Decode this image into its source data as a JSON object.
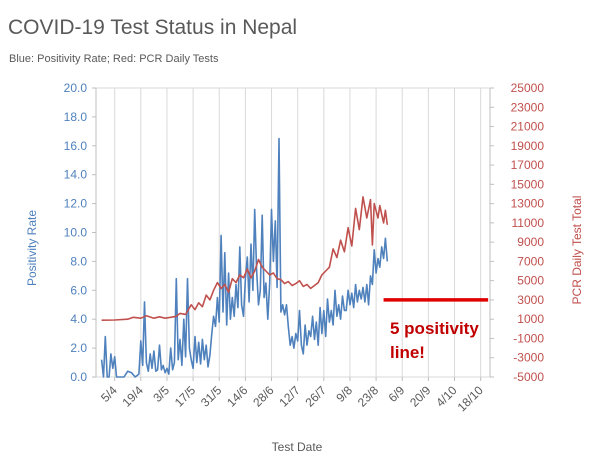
{
  "chart_data": {
    "type": "line",
    "title": "COVID-19 Test Status in Nepal",
    "subtitle": "Blue: Positivity Rate; Red: PCR Daily Tests",
    "xlabel": "Test Date",
    "ylabel_left": "Positivity Rate",
    "ylabel_right": "PCR Daily Test Total",
    "x_ticks": [
      "5/4",
      "19/4",
      "3/5",
      "17/5",
      "31/5",
      "14/6",
      "28/6",
      "12/7",
      "26/7",
      "9/8",
      "23/8",
      "6/9",
      "20/9",
      "4/10",
      "18/10"
    ],
    "y_left_ticks": [
      "0.0",
      "2.0",
      "4.0",
      "6.0",
      "8.0",
      "10.0",
      "12.0",
      "14.0",
      "16.0",
      "18.0",
      "20.0"
    ],
    "y_right_ticks": [
      "-5000",
      "-3000",
      "-1000",
      "1000",
      "3000",
      "5000",
      "7000",
      "9000",
      "11000",
      "13000",
      "15000",
      "17000",
      "19000",
      "21000",
      "23000",
      "25000"
    ],
    "ylim_left": [
      0,
      20
    ],
    "ylim_right": [
      -5000,
      25000
    ],
    "grid": "vertical",
    "colors": {
      "positivity": "#4f81bd",
      "tests": "#c0504d",
      "annotation_text": "#c00000",
      "annotation_line": "#e00000",
      "axis_text": "#7f7f7f"
    },
    "series": [
      {
        "name": "Positivity Rate",
        "axis": "left",
        "points": [
          [
            "2020-03-29",
            1.2
          ],
          [
            "2020-03-30",
            0.0
          ],
          [
            "2020-03-31",
            2.8
          ],
          [
            "2020-04-01",
            0.0
          ],
          [
            "2020-04-02",
            0.0
          ],
          [
            "2020-04-03",
            1.6
          ],
          [
            "2020-04-04",
            0.6
          ],
          [
            "2020-04-05",
            1.4
          ],
          [
            "2020-04-06",
            0.0
          ],
          [
            "2020-04-07",
            0.0
          ],
          [
            "2020-04-10",
            0.0
          ],
          [
            "2020-04-12",
            0.4
          ],
          [
            "2020-04-14",
            0.3
          ],
          [
            "2020-04-16",
            0.0
          ],
          [
            "2020-04-18",
            0.2
          ],
          [
            "2020-04-19",
            2.5
          ],
          [
            "2020-04-20",
            0.8
          ],
          [
            "2020-04-21",
            5.2
          ],
          [
            "2020-04-22",
            1.0
          ],
          [
            "2020-04-23",
            0.4
          ],
          [
            "2020-04-24",
            1.6
          ],
          [
            "2020-04-25",
            0.6
          ],
          [
            "2020-04-26",
            1.8
          ],
          [
            "2020-04-27",
            0.4
          ],
          [
            "2020-04-28",
            0.5
          ],
          [
            "2020-04-29",
            2.2
          ],
          [
            "2020-04-30",
            0.5
          ],
          [
            "2020-05-01",
            0.8
          ],
          [
            "2020-05-02",
            0.3
          ],
          [
            "2020-05-03",
            0.6
          ],
          [
            "2020-05-04",
            0.2
          ],
          [
            "2020-05-05",
            2.0
          ],
          [
            "2020-05-06",
            0.5
          ],
          [
            "2020-05-07",
            1.0
          ],
          [
            "2020-05-08",
            6.8
          ],
          [
            "2020-05-09",
            1.2
          ],
          [
            "2020-05-10",
            2.6
          ],
          [
            "2020-05-11",
            0.8
          ],
          [
            "2020-05-12",
            4.0
          ],
          [
            "2020-05-13",
            1.4
          ],
          [
            "2020-05-14",
            6.8
          ],
          [
            "2020-05-15",
            2.0
          ],
          [
            "2020-05-16",
            1.2
          ],
          [
            "2020-05-17",
            0.6
          ],
          [
            "2020-05-18",
            2.8
          ],
          [
            "2020-05-19",
            1.0
          ],
          [
            "2020-05-20",
            2.4
          ],
          [
            "2020-05-21",
            0.9
          ],
          [
            "2020-05-22",
            2.6
          ],
          [
            "2020-05-23",
            1.2
          ],
          [
            "2020-05-24",
            2.2
          ],
          [
            "2020-05-25",
            0.7
          ],
          [
            "2020-05-26",
            1.5
          ],
          [
            "2020-05-27",
            3.0
          ],
          [
            "2020-05-28",
            4.2
          ],
          [
            "2020-05-29",
            3.5
          ],
          [
            "2020-05-30",
            5.5
          ],
          [
            "2020-05-31",
            3.8
          ],
          [
            "2020-06-01",
            9.8
          ],
          [
            "2020-06-02",
            4.5
          ],
          [
            "2020-06-03",
            8.6
          ],
          [
            "2020-06-04",
            3.6
          ],
          [
            "2020-06-05",
            7.2
          ],
          [
            "2020-06-06",
            4.0
          ],
          [
            "2020-06-07",
            5.5
          ],
          [
            "2020-06-08",
            4.2
          ],
          [
            "2020-06-09",
            6.4
          ],
          [
            "2020-06-10",
            4.8
          ],
          [
            "2020-06-11",
            9.0
          ],
          [
            "2020-06-12",
            5.0
          ],
          [
            "2020-06-13",
            4.2
          ],
          [
            "2020-06-14",
            6.8
          ],
          [
            "2020-06-15",
            8.3
          ],
          [
            "2020-06-16",
            5.2
          ],
          [
            "2020-06-17",
            9.2
          ],
          [
            "2020-06-18",
            6.0
          ],
          [
            "2020-06-19",
            11.6
          ],
          [
            "2020-06-20",
            7.4
          ],
          [
            "2020-06-21",
            5.0
          ],
          [
            "2020-06-22",
            6.0
          ],
          [
            "2020-06-23",
            11.2
          ],
          [
            "2020-06-24",
            5.5
          ],
          [
            "2020-06-25",
            6.5
          ],
          [
            "2020-06-26",
            4.0
          ],
          [
            "2020-06-27",
            6.5
          ],
          [
            "2020-06-28",
            11.6
          ],
          [
            "2020-06-29",
            8.0
          ],
          [
            "2020-06-30",
            10.8
          ],
          [
            "2020-07-01",
            6.2
          ],
          [
            "2020-07-02",
            16.5
          ],
          [
            "2020-07-03",
            4.5
          ],
          [
            "2020-07-04",
            5.0
          ],
          [
            "2020-07-05",
            4.3
          ],
          [
            "2020-07-06",
            5.0
          ],
          [
            "2020-07-07",
            3.5
          ],
          [
            "2020-07-08",
            2.2
          ],
          [
            "2020-07-09",
            2.8
          ],
          [
            "2020-07-10",
            2.0
          ],
          [
            "2020-07-11",
            3.0
          ],
          [
            "2020-07-12",
            2.5
          ],
          [
            "2020-07-13",
            4.6
          ],
          [
            "2020-07-14",
            2.2
          ],
          [
            "2020-07-15",
            1.6
          ],
          [
            "2020-07-16",
            3.6
          ],
          [
            "2020-07-17",
            2.2
          ],
          [
            "2020-07-18",
            3.2
          ],
          [
            "2020-07-19",
            2.8
          ],
          [
            "2020-07-20",
            4.2
          ],
          [
            "2020-07-21",
            2.6
          ],
          [
            "2020-07-22",
            3.8
          ],
          [
            "2020-07-23",
            2.2
          ],
          [
            "2020-07-24",
            4.8
          ],
          [
            "2020-07-25",
            3.0
          ],
          [
            "2020-07-26",
            4.6
          ],
          [
            "2020-07-27",
            2.8
          ],
          [
            "2020-07-28",
            5.4
          ],
          [
            "2020-07-29",
            3.8
          ],
          [
            "2020-07-30",
            4.6
          ],
          [
            "2020-07-31",
            3.6
          ],
          [
            "2020-08-01",
            6.0
          ],
          [
            "2020-08-02",
            4.2
          ],
          [
            "2020-08-03",
            5.0
          ],
          [
            "2020-08-04",
            4.0
          ],
          [
            "2020-08-05",
            5.6
          ],
          [
            "2020-08-06",
            4.6
          ],
          [
            "2020-08-07",
            4.6
          ],
          [
            "2020-08-08",
            6.0
          ],
          [
            "2020-08-09",
            5.0
          ],
          [
            "2020-08-10",
            5.8
          ],
          [
            "2020-08-11",
            4.8
          ],
          [
            "2020-08-12",
            6.4
          ],
          [
            "2020-08-13",
            5.2
          ],
          [
            "2020-08-14",
            6.0
          ],
          [
            "2020-08-15",
            5.4
          ],
          [
            "2020-08-16",
            6.2
          ],
          [
            "2020-08-17",
            5.2
          ],
          [
            "2020-08-18",
            6.4
          ],
          [
            "2020-08-19",
            5.0
          ],
          [
            "2020-08-20",
            7.0
          ],
          [
            "2020-08-21",
            6.4
          ],
          [
            "2020-08-22",
            8.8
          ],
          [
            "2020-08-23",
            7.2
          ],
          [
            "2020-08-24",
            8.2
          ],
          [
            "2020-08-25",
            7.6
          ],
          [
            "2020-08-26",
            9.0
          ],
          [
            "2020-08-27",
            8.2
          ],
          [
            "2020-08-28",
            9.6
          ],
          [
            "2020-08-29",
            8.0
          ]
        ]
      },
      {
        "name": "PCR Daily Tests",
        "axis": "right",
        "points": [
          [
            "2020-03-29",
            900
          ],
          [
            "2020-04-05",
            920
          ],
          [
            "2020-04-12",
            1000
          ],
          [
            "2020-04-15",
            1200
          ],
          [
            "2020-04-19",
            1100
          ],
          [
            "2020-04-22",
            1350
          ],
          [
            "2020-04-26",
            1100
          ],
          [
            "2020-04-29",
            1250
          ],
          [
            "2020-05-02",
            1100
          ],
          [
            "2020-05-05",
            1200
          ],
          [
            "2020-05-08",
            1300
          ],
          [
            "2020-05-10",
            1600
          ],
          [
            "2020-05-13",
            1500
          ],
          [
            "2020-05-16",
            2500
          ],
          [
            "2020-05-18",
            2000
          ],
          [
            "2020-05-20",
            2700
          ],
          [
            "2020-05-22",
            2300
          ],
          [
            "2020-05-24",
            3500
          ],
          [
            "2020-05-26",
            3000
          ],
          [
            "2020-05-28",
            4000
          ],
          [
            "2020-05-30",
            4800
          ],
          [
            "2020-06-01",
            4200
          ],
          [
            "2020-06-03",
            4600
          ],
          [
            "2020-06-05",
            3800
          ],
          [
            "2020-06-07",
            5200
          ],
          [
            "2020-06-09",
            4800
          ],
          [
            "2020-06-11",
            5600
          ],
          [
            "2020-06-13",
            5300
          ],
          [
            "2020-06-15",
            6200
          ],
          [
            "2020-06-17",
            5300
          ],
          [
            "2020-06-19",
            6000
          ],
          [
            "2020-06-21",
            7200
          ],
          [
            "2020-06-23",
            6400
          ],
          [
            "2020-06-25",
            6000
          ],
          [
            "2020-06-27",
            5600
          ],
          [
            "2020-06-29",
            5800
          ],
          [
            "2020-07-01",
            5200
          ],
          [
            "2020-07-03",
            5100
          ],
          [
            "2020-07-05",
            4700
          ],
          [
            "2020-07-07",
            4900
          ],
          [
            "2020-07-09",
            4500
          ],
          [
            "2020-07-11",
            4700
          ],
          [
            "2020-07-13",
            5000
          ],
          [
            "2020-07-15",
            4400
          ],
          [
            "2020-07-17",
            4600
          ],
          [
            "2020-07-19",
            4200
          ],
          [
            "2020-07-21",
            4500
          ],
          [
            "2020-07-23",
            4800
          ],
          [
            "2020-07-25",
            5600
          ],
          [
            "2020-07-27",
            6000
          ],
          [
            "2020-07-29",
            6400
          ],
          [
            "2020-07-31",
            8300
          ],
          [
            "2020-08-02",
            7400
          ],
          [
            "2020-08-04",
            9200
          ],
          [
            "2020-08-06",
            8000
          ],
          [
            "2020-08-08",
            10500
          ],
          [
            "2020-08-10",
            8600
          ],
          [
            "2020-08-12",
            12500
          ],
          [
            "2020-08-14",
            10300
          ],
          [
            "2020-08-16",
            13700
          ],
          [
            "2020-08-18",
            11500
          ],
          [
            "2020-08-20",
            13400
          ],
          [
            "2020-08-21",
            8700
          ],
          [
            "2020-08-22",
            13000
          ],
          [
            "2020-08-24",
            11500
          ],
          [
            "2020-08-25",
            12800
          ],
          [
            "2020-08-27",
            11000
          ],
          [
            "2020-08-28",
            12300
          ],
          [
            "2020-08-29",
            10800
          ]
        ]
      }
    ],
    "annotation": {
      "text_line1": "5 positivity",
      "text_line2": "line!",
      "level_right_axis": 3000,
      "x_range": [
        "2020-08-27",
        "2020-10-22"
      ]
    }
  }
}
